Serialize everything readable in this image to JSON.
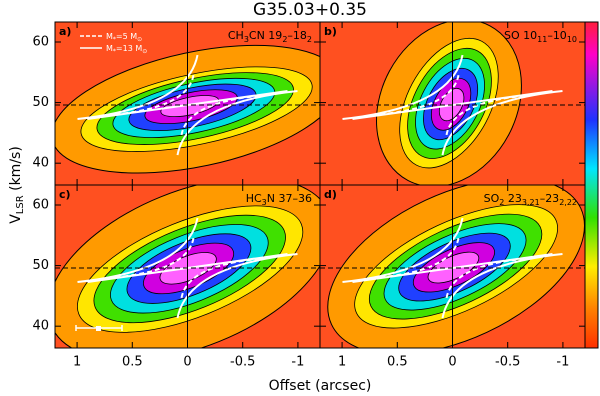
{
  "title": "G35.03+0.35",
  "x_label": "Offset (arcsec)",
  "y_label": [
    "V",
    "LSR",
    " (km/s)"
  ],
  "legend": [
    [
      "M",
      "*",
      "=5 M",
      "⊙"
    ],
    [
      "M",
      "*",
      "=13 M",
      "⊙"
    ]
  ],
  "chart_data": [
    {
      "type": "pv-diagram",
      "panel_label": "a)",
      "line_label": [
        "CH",
        "3",
        "CN 19",
        "2",
        "–18",
        "2"
      ],
      "v_sys": 49.6,
      "offset_center": 0,
      "xlim": [
        1.2,
        -1.2
      ],
      "ylim": [
        36.4,
        63.3
      ],
      "xticks": [
        1,
        0.5,
        0,
        -0.5,
        -1
      ],
      "yticks": [
        40,
        50,
        60
      ]
    },
    {
      "type": "pv-diagram",
      "panel_label": "b)",
      "line_label": [
        "SO 10",
        "11",
        "–10",
        "10"
      ],
      "v_sys": 49.6,
      "offset_center": 0,
      "xlim": [
        1.2,
        -1.2
      ],
      "ylim": [
        36.4,
        63.3
      ],
      "xticks": [
        1,
        0.5,
        0,
        -0.5,
        -1
      ],
      "yticks": [
        40,
        50,
        60
      ]
    },
    {
      "type": "pv-diagram",
      "panel_label": "c)",
      "line_label": [
        "HC",
        "3",
        "N 37–36"
      ],
      "v_sys": 49.6,
      "offset_center": 0,
      "xlim": [
        1.2,
        -1.2
      ],
      "ylim": [
        36.4,
        63.3
      ],
      "xticks": [
        1,
        0.5,
        0,
        -0.5,
        -1
      ],
      "yticks": [
        40,
        50,
        60
      ]
    },
    {
      "type": "pv-diagram",
      "panel_label": "d)",
      "line_label": [
        "SO",
        "2",
        " 23",
        "3,21",
        "–23",
        "2,22"
      ],
      "v_sys": 49.6,
      "offset_center": 0,
      "xlim": [
        1.2,
        -1.2
      ],
      "ylim": [
        36.4,
        63.3
      ],
      "xticks": [
        1,
        0.5,
        0,
        -0.5,
        -1
      ],
      "yticks": [
        40,
        50,
        60
      ]
    }
  ]
}
